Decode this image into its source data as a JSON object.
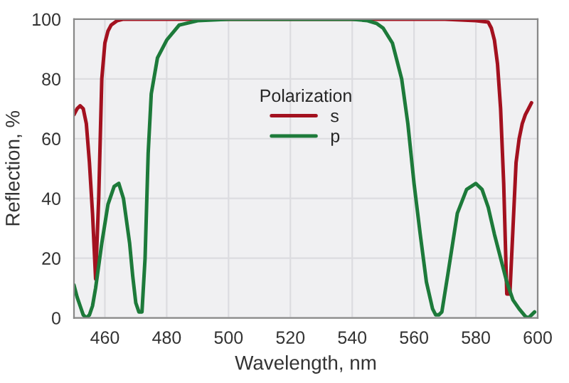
{
  "chart_data": {
    "type": "line",
    "xlabel": "Wavelength, nm",
    "ylabel": "Reflection, %",
    "legend_title": "Polarization",
    "xlim": [
      450,
      600
    ],
    "xticks": [
      460,
      480,
      500,
      520,
      540,
      560,
      580,
      600
    ],
    "ylim": [
      0,
      100
    ],
    "yticks": [
      0,
      20,
      40,
      60,
      80,
      100
    ],
    "grid": true,
    "legend": "top",
    "line_style": "solid",
    "series": [
      {
        "name": "s",
        "color": "#a3111f",
        "x": [
          450,
          451,
          452,
          453,
          454,
          455,
          456,
          457,
          458,
          459,
          460,
          461,
          462,
          464,
          466,
          470,
          480,
          500,
          540,
          570,
          580,
          584,
          585,
          586,
          587,
          588,
          589,
          590,
          591,
          592,
          593,
          594,
          595,
          596,
          597,
          598
        ],
        "values": [
          68,
          70,
          71,
          70,
          65,
          52,
          35,
          13,
          40,
          80,
          92,
          96,
          98,
          99.5,
          100,
          100,
          100,
          100,
          100,
          100,
          99.5,
          99,
          97,
          93,
          85,
          70,
          45,
          8,
          8,
          30,
          52,
          60,
          65,
          68,
          70,
          72
        ]
      },
      {
        "name": "p",
        "color": "#1d7a3a",
        "x": [
          450,
          451,
          452,
          453,
          454,
          455,
          456,
          457,
          459,
          461,
          463,
          464.5,
          466,
          468,
          469,
          470,
          471,
          472,
          473,
          474,
          475,
          477,
          480,
          484,
          490,
          500,
          540,
          545,
          548,
          550,
          553,
          556,
          558,
          560,
          562,
          564,
          566,
          567,
          568,
          569,
          571,
          574,
          577,
          580,
          582,
          584,
          586,
          588,
          590,
          592,
          594,
          596,
          597,
          598,
          599
        ],
        "values": [
          11,
          7,
          4,
          1,
          0,
          1,
          4,
          10,
          25,
          38,
          44,
          45,
          40,
          25,
          14,
          5,
          2,
          2,
          20,
          55,
          75,
          87,
          93,
          98,
          99.5,
          100,
          100,
          99.5,
          98.5,
          97,
          92,
          80,
          65,
          45,
          28,
          12,
          3,
          1,
          1,
          2,
          15,
          35,
          43,
          45,
          43,
          37,
          28,
          20,
          12,
          6,
          3,
          0.5,
          0,
          1,
          2
        ]
      }
    ]
  }
}
